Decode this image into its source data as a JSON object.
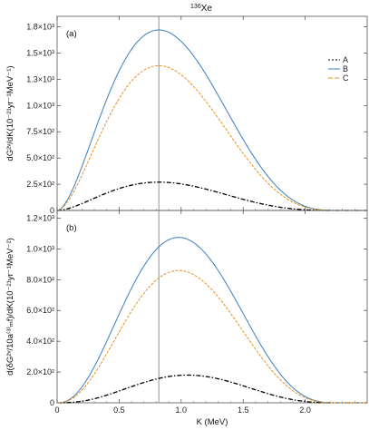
{
  "title": "136Xe",
  "title_sup": "136",
  "title_main": "Xe",
  "xlabel": "K (MeV)",
  "vline_x": 0.82,
  "legend": [
    {
      "name": "A",
      "color": "#000000",
      "dash": "2,2"
    },
    {
      "name": "B",
      "color": "#3a7dc0",
      "dash": ""
    },
    {
      "name": "C",
      "color": "#e8901c",
      "dash": "5,2"
    }
  ],
  "chart_data": [
    {
      "type": "line",
      "panel_label": "(a)",
      "ylabel": "dG²ᵛ/dK(10⁻²¹yr⁻¹MeV⁻¹)",
      "xlim": [
        0,
        2.5
      ],
      "ylim": [
        0,
        1850
      ],
      "xticks": [
        0,
        0.5,
        1.0,
        1.5,
        2.0
      ],
      "xtick_labels": [
        "0.0",
        "0.5",
        "1.0",
        "1.5",
        "2.0"
      ],
      "yticks": [
        0,
        250,
        500,
        750,
        1000,
        1250,
        1500,
        1750
      ],
      "ytick_labels": [
        "0",
        "2.5×10²",
        "5.0×10²",
        "7.5×10²",
        "1.0×10³",
        "1.3×10³",
        "1.5×10³",
        "1.8×10³"
      ],
      "series": [
        {
          "name": "A",
          "style": "dashdot",
          "color": "#000000",
          "peak_x": 0.82,
          "peak_y": 270,
          "end_x": 2.27
        },
        {
          "name": "B",
          "style": "solid",
          "color": "#3a7dc0",
          "peak_x": 0.82,
          "peak_y": 1720,
          "end_x": 2.27
        },
        {
          "name": "C",
          "style": "dashed",
          "color": "#e8901c",
          "peak_x": 0.82,
          "peak_y": 1380,
          "end_x": 2.27
        }
      ]
    },
    {
      "type": "line",
      "panel_label": "(b)",
      "ylabel": "d(δG²ᵛ/10a⁽³⁾ₘf)/dK(10⁻²¹yr⁻¹MeV⁻²)",
      "xlim": [
        0,
        2.5
      ],
      "ylim": [
        0,
        1250
      ],
      "xticks": [
        0,
        0.5,
        1.0,
        1.5,
        2.0
      ],
      "xtick_labels": [
        "0",
        "0.5",
        "1.0",
        "1.5",
        "2.0"
      ],
      "yticks": [
        0,
        200,
        400,
        600,
        800,
        1000,
        1200
      ],
      "ytick_labels": [
        "0",
        "2.0×10²",
        "4.0×10²",
        "6.0×10²",
        "8.0×10²",
        "1.0×10³",
        "1.2×10³"
      ],
      "series": [
        {
          "name": "A",
          "style": "dashdot",
          "color": "#000000",
          "peak_x": 1.05,
          "peak_y": 180,
          "end_x": 2.27
        },
        {
          "name": "B",
          "style": "solid",
          "color": "#3a7dc0",
          "peak_x": 0.98,
          "peak_y": 1075,
          "end_x": 2.27
        },
        {
          "name": "C",
          "style": "dashed",
          "color": "#e8901c",
          "peak_x": 0.98,
          "peak_y": 860,
          "end_x": 2.27
        }
      ]
    }
  ]
}
